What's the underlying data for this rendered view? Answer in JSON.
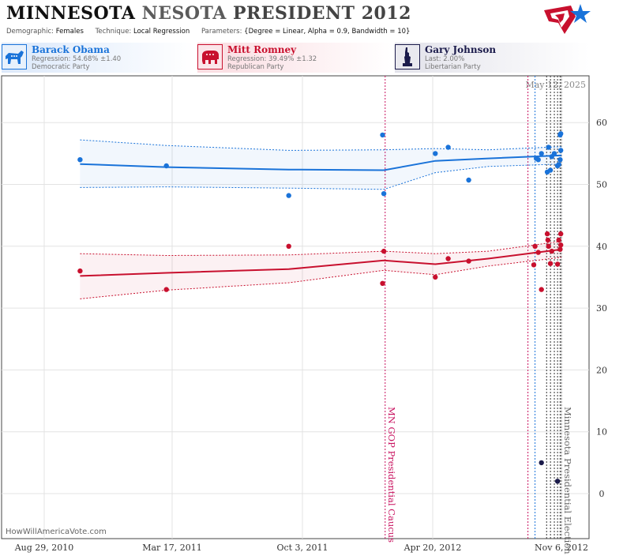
{
  "header": {
    "title_state": "MINNESOTA",
    "title_mid": "NESOTA",
    "title_rest": "PRESIDENT 2012",
    "demographic_label": "Demographic:",
    "demographic_value": "Females",
    "technique_label": "Technique:",
    "technique_value": "Local Regression",
    "parameters_label": "Parameters:",
    "parameters_value": "{Degree = Linear, Alpha = 0.9, Bandwidth = 10}"
  },
  "candidates": [
    {
      "name": "Barack Obama",
      "stat": "Regression: 54.68% ±1.40",
      "party": "Democratic Party",
      "color": "#1a73d9"
    },
    {
      "name": "Mitt Romney",
      "stat": "Regression: 39.49% ±1.32",
      "party": "Republican Party",
      "color": "#c8102e"
    },
    {
      "name": "Gary Johnson",
      "stat": "Last: 2.00%",
      "party": "Libertarian Party",
      "color": "#1b1b4b"
    }
  ],
  "credit": "HowWillAmericaVote.com",
  "chart_data": {
    "type": "scatter",
    "date_label": "May 12, 2025",
    "x_ticks": [
      "Aug 29, 2010",
      "Mar 17, 2011",
      "Oct 3, 2011",
      "Apr 20, 2012",
      "Nov 6, 2012"
    ],
    "x_range": [
      "2010-08-29",
      "2012-11-30"
    ],
    "ylim": [
      -8,
      68
    ],
    "y_ticks": [
      0,
      10,
      20,
      30,
      40,
      50,
      60
    ],
    "annotations": [
      {
        "date": "2012-02-07",
        "label": "MN GOP Presidential Caucus",
        "color": "#c8105e"
      },
      {
        "date": "2012-11-06",
        "label": "Minnesota Presidential Election",
        "color": "#666666"
      }
    ],
    "poll_lines": [
      {
        "date": "2012-09-15",
        "color": "#c8105e"
      },
      {
        "date": "2012-09-26",
        "color": "#1a73d9"
      },
      {
        "date": "2012-10-14",
        "color": "#333333"
      },
      {
        "date": "2012-10-20",
        "color": "#333333"
      },
      {
        "date": "2012-10-26",
        "color": "#333333"
      },
      {
        "date": "2012-10-31",
        "color": "#333333"
      },
      {
        "date": "2012-11-04",
        "color": "#333333"
      }
    ],
    "series": [
      {
        "name": "Barack Obama",
        "color": "#1a73d9",
        "points": [
          {
            "date": "2010-10-24",
            "value": 54
          },
          {
            "date": "2011-03-08",
            "value": 53
          },
          {
            "date": "2011-09-12",
            "value": 48.2
          },
          {
            "date": "2012-02-03",
            "value": 58
          },
          {
            "date": "2012-02-05",
            "value": 48.5
          },
          {
            "date": "2012-04-24",
            "value": 55
          },
          {
            "date": "2012-05-14",
            "value": 56
          },
          {
            "date": "2012-06-15",
            "value": 50.7
          },
          {
            "date": "2012-09-28",
            "value": 54.2
          },
          {
            "date": "2012-10-01",
            "value": 54
          },
          {
            "date": "2012-10-06",
            "value": 55
          },
          {
            "date": "2012-10-17",
            "value": 56
          },
          {
            "date": "2012-10-15",
            "value": 52
          },
          {
            "date": "2012-10-20",
            "value": 52.3
          },
          {
            "date": "2012-10-22",
            "value": 54.5
          },
          {
            "date": "2012-10-26",
            "value": 55
          },
          {
            "date": "2012-10-31",
            "value": 53
          },
          {
            "date": "2012-11-02",
            "value": 53.2
          },
          {
            "date": "2012-11-04",
            "value": 58
          },
          {
            "date": "2012-11-05",
            "value": 58.2
          },
          {
            "date": "2012-11-05",
            "value": 55.5
          },
          {
            "date": "2012-11-04",
            "value": 54
          }
        ],
        "trend": [
          {
            "date": "2010-10-24",
            "value": 53.3
          },
          {
            "date": "2011-03-08",
            "value": 52.8
          },
          {
            "date": "2011-09-12",
            "value": 52.4
          },
          {
            "date": "2012-02-05",
            "value": 52.3
          },
          {
            "date": "2012-04-24",
            "value": 53.8
          },
          {
            "date": "2012-07-15",
            "value": 54.2
          },
          {
            "date": "2012-11-06",
            "value": 54.7
          }
        ],
        "band_upper": [
          {
            "date": "2010-10-24",
            "value": 57.2
          },
          {
            "date": "2011-03-08",
            "value": 56.3
          },
          {
            "date": "2011-09-12",
            "value": 55.5
          },
          {
            "date": "2012-02-05",
            "value": 55.6
          },
          {
            "date": "2012-04-24",
            "value": 55.8
          },
          {
            "date": "2012-07-15",
            "value": 55.6
          },
          {
            "date": "2012-11-06",
            "value": 56.1
          }
        ],
        "band_lower": [
          {
            "date": "2010-10-24",
            "value": 49.5
          },
          {
            "date": "2011-03-08",
            "value": 49.6
          },
          {
            "date": "2011-09-12",
            "value": 49.4
          },
          {
            "date": "2012-02-05",
            "value": 49.2
          },
          {
            "date": "2012-04-24",
            "value": 51.9
          },
          {
            "date": "2012-07-15",
            "value": 52.9
          },
          {
            "date": "2012-11-06",
            "value": 53.3
          }
        ]
      },
      {
        "name": "Mitt Romney",
        "color": "#c8102e",
        "points": [
          {
            "date": "2010-10-24",
            "value": 36
          },
          {
            "date": "2011-03-08",
            "value": 33
          },
          {
            "date": "2011-09-12",
            "value": 40
          },
          {
            "date": "2012-02-03",
            "value": 34
          },
          {
            "date": "2012-02-05",
            "value": 39.2
          },
          {
            "date": "2012-04-24",
            "value": 35
          },
          {
            "date": "2012-05-14",
            "value": 38
          },
          {
            "date": "2012-06-15",
            "value": 37.6
          },
          {
            "date": "2012-09-24",
            "value": 37
          },
          {
            "date": "2012-09-26",
            "value": 40
          },
          {
            "date": "2012-10-01",
            "value": 39
          },
          {
            "date": "2012-10-06",
            "value": 33
          },
          {
            "date": "2012-10-15",
            "value": 42
          },
          {
            "date": "2012-10-16",
            "value": 41
          },
          {
            "date": "2012-10-17",
            "value": 40
          },
          {
            "date": "2012-10-20",
            "value": 37.2
          },
          {
            "date": "2012-10-22",
            "value": 39.2
          },
          {
            "date": "2012-10-31",
            "value": 37.1
          },
          {
            "date": "2012-11-02",
            "value": 41
          },
          {
            "date": "2012-11-04",
            "value": 39.5
          },
          {
            "date": "2012-11-05",
            "value": 40.2
          },
          {
            "date": "2012-11-05",
            "value": 42
          }
        ],
        "trend": [
          {
            "date": "2010-10-24",
            "value": 35.2
          },
          {
            "date": "2011-03-08",
            "value": 35.7
          },
          {
            "date": "2011-09-12",
            "value": 36.3
          },
          {
            "date": "2012-02-05",
            "value": 37.7
          },
          {
            "date": "2012-04-24",
            "value": 37.1
          },
          {
            "date": "2012-07-15",
            "value": 38
          },
          {
            "date": "2012-11-06",
            "value": 39.5
          }
        ],
        "band_upper": [
          {
            "date": "2010-10-24",
            "value": 38.8
          },
          {
            "date": "2011-03-08",
            "value": 38.5
          },
          {
            "date": "2011-09-12",
            "value": 38.6
          },
          {
            "date": "2012-02-05",
            "value": 39.2
          },
          {
            "date": "2012-04-24",
            "value": 38.8
          },
          {
            "date": "2012-07-15",
            "value": 39.2
          },
          {
            "date": "2012-11-06",
            "value": 40.8
          }
        ],
        "band_lower": [
          {
            "date": "2010-10-24",
            "value": 31.5
          },
          {
            "date": "2011-03-08",
            "value": 32.9
          },
          {
            "date": "2011-09-12",
            "value": 34.1
          },
          {
            "date": "2012-02-05",
            "value": 36.1
          },
          {
            "date": "2012-04-24",
            "value": 35.4
          },
          {
            "date": "2012-07-15",
            "value": 36.8
          },
          {
            "date": "2012-11-06",
            "value": 38.2
          }
        ]
      },
      {
        "name": "Gary Johnson",
        "color": "#1b1b4b",
        "points": [
          {
            "date": "2012-10-06",
            "value": 5
          },
          {
            "date": "2012-10-31",
            "value": 2
          }
        ]
      }
    ]
  }
}
